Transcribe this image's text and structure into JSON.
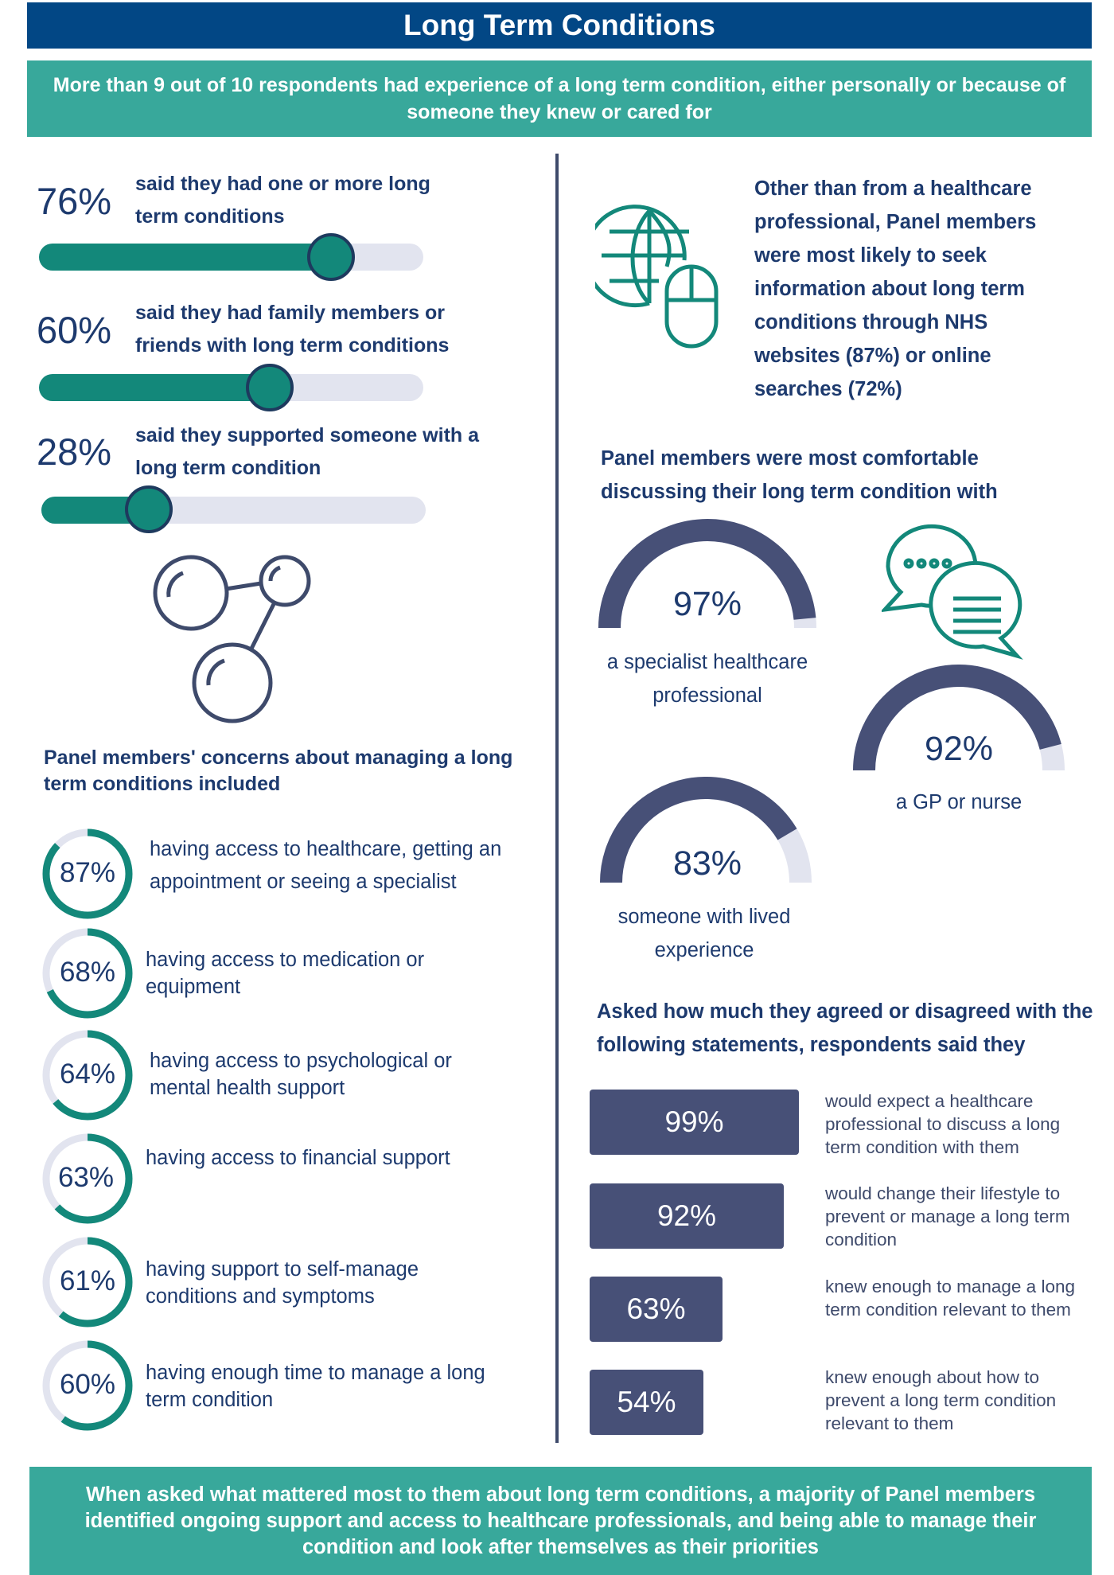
{
  "title": "Long Term Conditions",
  "intro": "More than 9 out of 10 respondents had experience of a long term condition, either personally or because of someone they knew or cared for",
  "colors": {
    "navy": "#024785",
    "teal": "#38a89b",
    "dark_teal": "#13887a",
    "slate": "#475077",
    "track": "#e2e4ef"
  },
  "stats": [
    {
      "value": 76,
      "pct": "76%",
      "text": "said they had one or more long term conditions"
    },
    {
      "value": 60,
      "pct": "60%",
      "text": "said they had family members or friends with long term conditions"
    },
    {
      "value": 28,
      "pct": "28%",
      "text": "said they supported someone with a long term condition"
    }
  ],
  "icons": {
    "molecule": "molecule-icon",
    "globe": "globe-mouse-icon",
    "chat": "chat-bubbles-icon"
  },
  "concerns": {
    "heading": "Panel members' concerns about managing a long term conditions included",
    "items": [
      {
        "value": 87,
        "pct": "87%",
        "text": "having access to healthcare, getting an appointment or seeing a specialist"
      },
      {
        "value": 68,
        "pct": "68%",
        "text": "having access to medication or equipment"
      },
      {
        "value": 64,
        "pct": "64%",
        "text": "having access to psychological or mental health support"
      },
      {
        "value": 63,
        "pct": "63%",
        "text": "having access to financial support"
      },
      {
        "value": 61,
        "pct": "61%",
        "text": "having support to self-manage conditions and symptoms"
      },
      {
        "value": 60,
        "pct": "60%",
        "text": "having enough time to manage a long term condition"
      }
    ]
  },
  "info_sources": "Other than from a healthcare professional, Panel members were most likely to seek information about long term conditions through NHS websites (87%) or online searches (72%)",
  "comfortable": {
    "heading": "Panel members were most comfortable discussing their long term condition with",
    "gauges": [
      {
        "value": 97,
        "pct": "97%",
        "label": "a specialist healthcare professional"
      },
      {
        "value": 92,
        "pct": "92%",
        "label": "a GP or nurse"
      },
      {
        "value": 83,
        "pct": "83%",
        "label": "someone with lived experience"
      }
    ]
  },
  "agreement": {
    "heading": "Asked how much they agreed or disagreed with the following statements, respondents said they",
    "bars": [
      {
        "value": 99,
        "pct": "99%",
        "text": "would expect a healthcare professional to discuss a long term condition with them"
      },
      {
        "value": 92,
        "pct": "92%",
        "text": "would change their lifestyle to prevent or manage a long term condition"
      },
      {
        "value": 63,
        "pct": "63%",
        "text": "knew enough to manage a long term condition relevant to them"
      },
      {
        "value": 54,
        "pct": "54%",
        "text": "knew enough about how to prevent a long term condition relevant to them"
      }
    ]
  },
  "footer": "When asked what mattered most to them about long term conditions, a majority of Panel members identified ongoing support and access to healthcare professionals, and being able to manage their condition and look after themselves as their priorities"
}
